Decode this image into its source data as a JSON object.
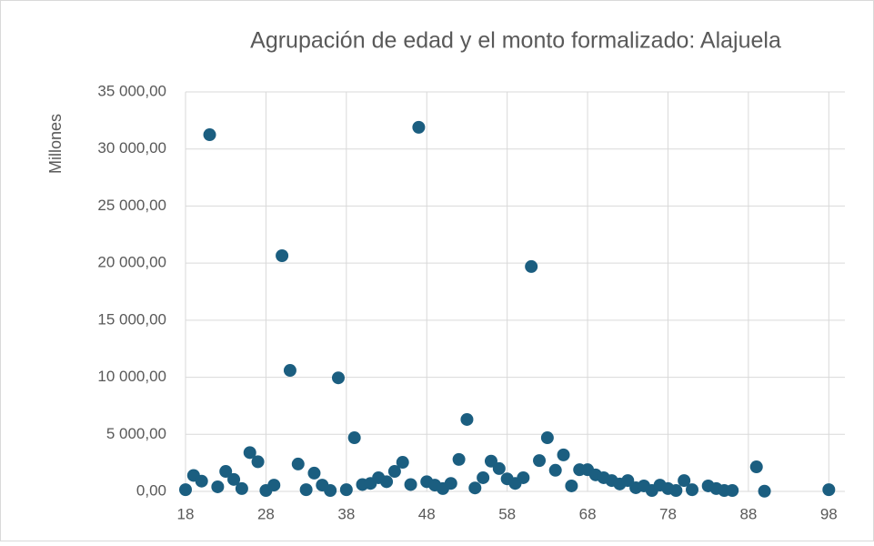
{
  "chart_data": {
    "type": "scatter",
    "title": "Agrupación de edad y el monto formalizado: Alajuela",
    "y_label": "Millones",
    "color": "#1b5e80",
    "grid": true,
    "xlim": [
      18,
      100
    ],
    "xticks": [
      18,
      28,
      38,
      48,
      58,
      68,
      78,
      88,
      98
    ],
    "ylim": [
      0,
      35000
    ],
    "yticks": [
      {
        "value": 0,
        "label": "0,00"
      },
      {
        "value": 5000,
        "label": "5 000,00"
      },
      {
        "value": 10000,
        "label": "10 000,00"
      },
      {
        "value": 15000,
        "label": "15 000,00"
      },
      {
        "value": 20000,
        "label": "20 000,00"
      },
      {
        "value": 25000,
        "label": "25 000,00"
      },
      {
        "value": 30000,
        "label": "30 000,00"
      },
      {
        "value": 35000,
        "label": "35 000,00"
      }
    ],
    "x": [
      18,
      19,
      20,
      21,
      22,
      23,
      24,
      25,
      26,
      27,
      28,
      29,
      30,
      31,
      32,
      33,
      34,
      35,
      36,
      37,
      38,
      39,
      40,
      41,
      42,
      43,
      44,
      45,
      46,
      47,
      48,
      49,
      50,
      51,
      52,
      53,
      54,
      55,
      56,
      57,
      58,
      59,
      60,
      61,
      62,
      63,
      64,
      65,
      66,
      67,
      68,
      69,
      70,
      71,
      72,
      73,
      74,
      75,
      76,
      77,
      78,
      79,
      80,
      81,
      83,
      84,
      85,
      86,
      89,
      90,
      98
    ],
    "values": [
      150,
      1400,
      900,
      31250,
      400,
      1750,
      1050,
      250,
      3400,
      2600,
      80,
      550,
      20650,
      10600,
      2400,
      150,
      1600,
      550,
      80,
      9950,
      150,
      4700,
      600,
      700,
      1200,
      850,
      1750,
      2550,
      600,
      31900,
      850,
      550,
      250,
      700,
      2800,
      6300,
      300,
      1200,
      2650,
      2000,
      1100,
      700,
      1200,
      19700,
      2700,
      4700,
      1850,
      3200,
      480,
      1900,
      1900,
      1450,
      1200,
      950,
      650,
      950,
      320,
      480,
      80,
      550,
      250,
      80,
      950,
      150,
      480,
      250,
      80,
      80,
      2150,
      20,
      150
    ]
  }
}
